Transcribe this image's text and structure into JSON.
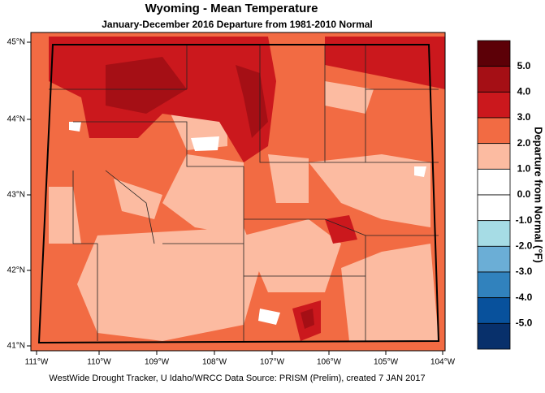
{
  "title": "Wyoming - Mean Temperature",
  "subtitle": "January-December 2016  Departure from 1981-2010 Normal",
  "lon_labels": [
    "111°W",
    "110°W",
    "109°W",
    "108°W",
    "107°W",
    "106°W",
    "105°W",
    "104°W"
  ],
  "lat_labels": [
    "45°N",
    "44°N",
    "43°N",
    "42°N",
    "41°N"
  ],
  "colorbar": {
    "title": "Departure from Normal (°F)",
    "labels": [
      "5.0",
      "4.0",
      "3.0",
      "2.0",
      "1.0",
      "0.0",
      "-1.0",
      "-2.0",
      "-3.0",
      "-4.0",
      "-5.0"
    ]
  },
  "footer": "WestWide Drought Tracker, U Idaho/WRCC Data Source: PRISM (Prelim), created  7 JAN 2017"
}
